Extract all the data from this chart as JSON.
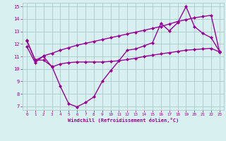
{
  "line1_x": [
    0,
    1,
    2,
    3,
    4,
    5,
    6,
    7,
    8,
    9,
    10,
    11,
    12,
    13,
    14,
    15,
    16,
    17,
    18,
    19,
    20,
    21,
    22,
    23
  ],
  "line1_y": [
    12.3,
    10.7,
    10.7,
    10.2,
    8.6,
    7.2,
    6.95,
    7.3,
    7.75,
    9.0,
    9.85,
    10.65,
    11.5,
    11.6,
    11.85,
    12.1,
    13.65,
    13.05,
    13.7,
    15.0,
    13.4,
    12.85,
    12.5,
    11.4
  ],
  "line2_x": [
    0,
    1,
    2,
    3,
    4,
    5,
    6,
    7,
    8,
    9,
    10,
    11,
    12,
    13,
    14,
    15,
    16,
    17,
    18,
    19,
    20,
    21,
    22,
    23
  ],
  "line2_y": [
    11.8,
    10.5,
    11.05,
    11.25,
    11.5,
    11.7,
    11.9,
    12.05,
    12.2,
    12.35,
    12.5,
    12.65,
    12.8,
    12.95,
    13.1,
    13.25,
    13.4,
    13.6,
    13.8,
    13.95,
    14.1,
    14.2,
    14.3,
    11.35
  ],
  "line3_x": [
    0,
    1,
    2,
    3,
    4,
    5,
    6,
    7,
    8,
    9,
    10,
    11,
    12,
    13,
    14,
    15,
    16,
    17,
    18,
    19,
    20,
    21,
    22,
    23
  ],
  "line3_y": [
    12.25,
    10.7,
    11.0,
    10.15,
    10.4,
    10.5,
    10.55,
    10.55,
    10.55,
    10.55,
    10.6,
    10.65,
    10.75,
    10.85,
    11.0,
    11.1,
    11.2,
    11.3,
    11.4,
    11.5,
    11.55,
    11.6,
    11.65,
    11.35
  ],
  "color": "#990099",
  "bg_color": "#d8f0f0",
  "grid_color": "#aacccc",
  "xlim": [
    -0.5,
    23.5
  ],
  "ylim": [
    6.7,
    15.3
  ],
  "yticks": [
    7,
    8,
    9,
    10,
    11,
    12,
    13,
    14,
    15
  ],
  "xticks": [
    0,
    1,
    2,
    3,
    4,
    5,
    6,
    7,
    8,
    9,
    10,
    11,
    12,
    13,
    14,
    15,
    16,
    17,
    18,
    19,
    20,
    21,
    22,
    23
  ],
  "xlabel": "Windchill (Refroidissement éolien,°C)",
  "xlabel_color": "#990099",
  "tick_color": "#990099",
  "linewidth": 1.0,
  "markersize": 2.5
}
